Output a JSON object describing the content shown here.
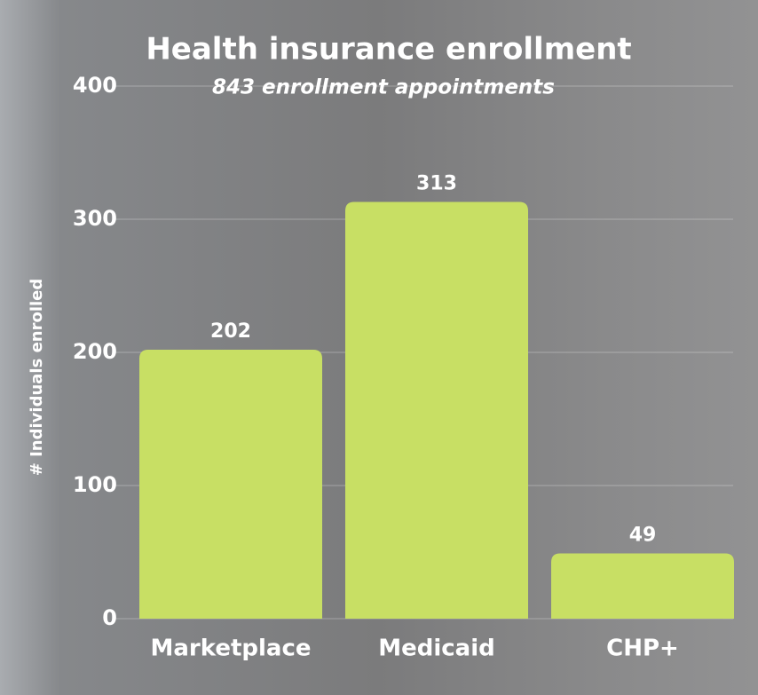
{
  "chart_data": {
    "type": "bar",
    "title": "Health insurance enrollment",
    "subtitle": "843 enrollment appointments",
    "y_label": "# Individuals enrolled",
    "categories": [
      "Marketplace",
      "Medicaid",
      "CHP+"
    ],
    "values": [
      202,
      313,
      49
    ],
    "color": "#c8df64",
    "ylim": [
      0,
      400
    ],
    "yticks": [
      0,
      100,
      200,
      300,
      400
    ],
    "grid": true
  }
}
